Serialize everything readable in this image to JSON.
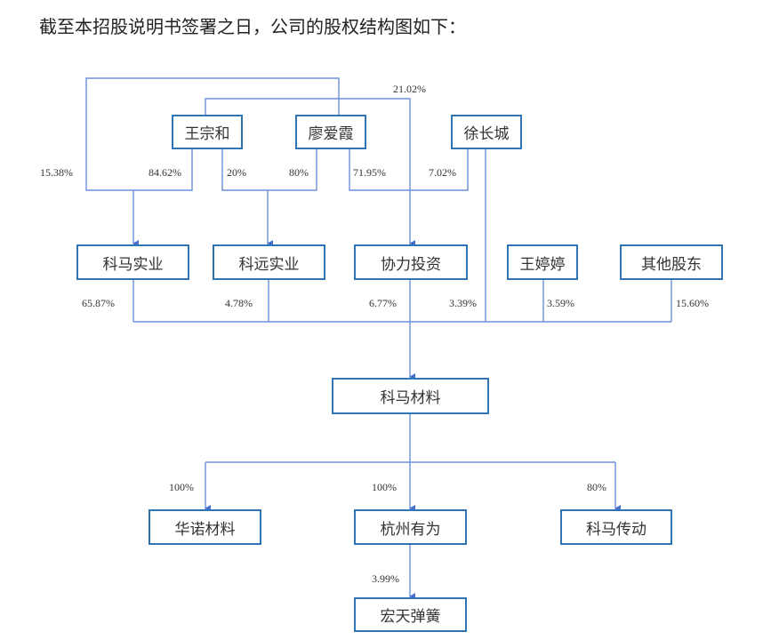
{
  "heading": "截至本招股说明书签署之日，公司的股权结构图如下：",
  "colors": {
    "line": "#5b7fd6",
    "box_border": "#2f75b5"
  },
  "nodes": {
    "wzh": "王宗和",
    "lax": "廖爱霞",
    "xcc": "徐长城",
    "kmsy": "科马实业",
    "kysy": "科远实业",
    "xltz": "协力投资",
    "wtt": "王婷婷",
    "qtgd": "其他股东",
    "kmcl": "科马材料",
    "hncl": "华诺材料",
    "hzyw": "杭州有为",
    "kmcd": "科马传动",
    "hthh": "宏天弹簧"
  },
  "percents": {
    "lax_kmsy": "15.38%",
    "wzh_kmsy": "84.62%",
    "wzh_kysy": "20%",
    "lax_kysy": "80%",
    "lax_xltz": "71.95%",
    "xcc_xltz": "7.02%",
    "wzh_xltz": "21.02%",
    "kmsy_kmcl": "65.87%",
    "kysy_kmcl": "4.78%",
    "xltz_kmcl": "6.77%",
    "xcc_kmcl": "3.39%",
    "wtt_kmcl": "3.59%",
    "qtgd_kmcl": "15.60%",
    "kmcl_hncl": "100%",
    "kmcl_hzyw": "100%",
    "kmcl_kmcd": "80%",
    "hzyw_hthh": "3.99%"
  }
}
